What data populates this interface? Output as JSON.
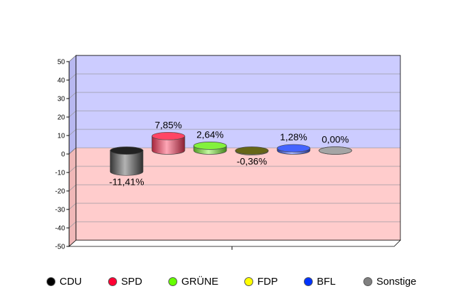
{
  "chart_data": {
    "type": "bar",
    "style": "3d-cylinder",
    "categories": [
      "CDU",
      "SPD",
      "GRÜNE",
      "FDP",
      "BFL",
      "Sonstige"
    ],
    "values": [
      -11.41,
      7.85,
      2.64,
      -0.36,
      1.28,
      0.0
    ],
    "value_labels": [
      "-11,41%",
      "7,85%",
      "2,64%",
      "-0,36%",
      "1,28%",
      "0,00%"
    ],
    "colors": [
      "#555555",
      "#ff3b5c",
      "#7cf032",
      "#ffff3a",
      "#3a5cff",
      "#a0a0a0"
    ],
    "legend_colors": [
      "#000000",
      "#ff0033",
      "#66ff00",
      "#ffff00",
      "#0033ff",
      "#808080"
    ],
    "ylim": [
      -50,
      50
    ],
    "y_ticks": [
      "50",
      "40",
      "30",
      "20",
      "10",
      "0",
      "-10",
      "-20",
      "-30",
      "-40",
      "-50"
    ],
    "y_tick_values": [
      50,
      40,
      30,
      20,
      10,
      0,
      -10,
      -20,
      -30,
      -40,
      -50
    ],
    "positive_background": "#ccccff",
    "negative_background": "#ffcccc",
    "grid": true,
    "legend_position": "bottom",
    "title": "",
    "xlabel": "",
    "ylabel": ""
  }
}
